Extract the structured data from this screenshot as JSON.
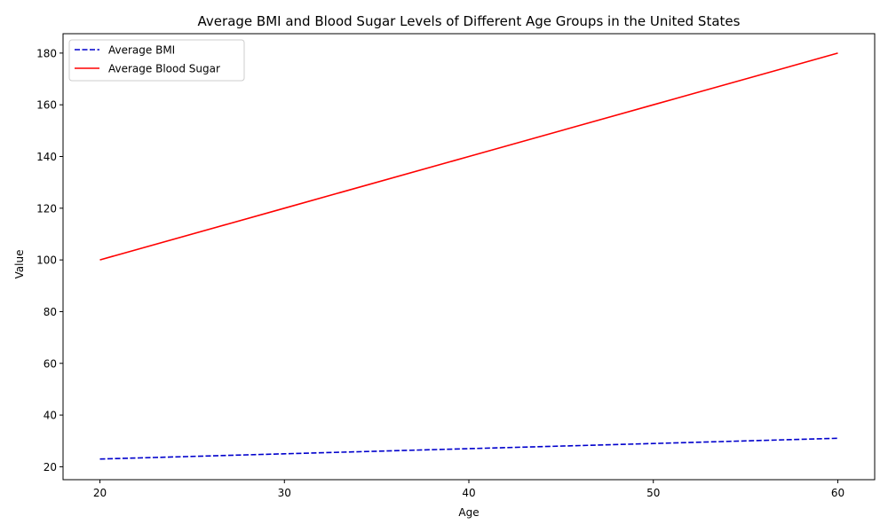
{
  "chart_data": {
    "type": "line",
    "title": "Average BMI and Blood Sugar Levels of Different Age Groups in the United States",
    "xlabel": "Age",
    "ylabel": "Value",
    "x": [
      20,
      30,
      40,
      50,
      60
    ],
    "xlim": [
      18,
      62
    ],
    "ylim": [
      15,
      187.5
    ],
    "xticks": [
      20,
      30,
      40,
      50,
      60
    ],
    "yticks": [
      20,
      40,
      60,
      80,
      100,
      120,
      140,
      160,
      180
    ],
    "grid": false,
    "legend_position": "top-left",
    "series": [
      {
        "name": "Average BMI",
        "values": [
          23,
          25,
          27,
          29,
          31
        ],
        "color": "#0000cc",
        "style": "dashed"
      },
      {
        "name": "Average Blood Sugar",
        "values": [
          100,
          120,
          140,
          160,
          180
        ],
        "color": "#ff0000",
        "style": "solid"
      }
    ]
  }
}
